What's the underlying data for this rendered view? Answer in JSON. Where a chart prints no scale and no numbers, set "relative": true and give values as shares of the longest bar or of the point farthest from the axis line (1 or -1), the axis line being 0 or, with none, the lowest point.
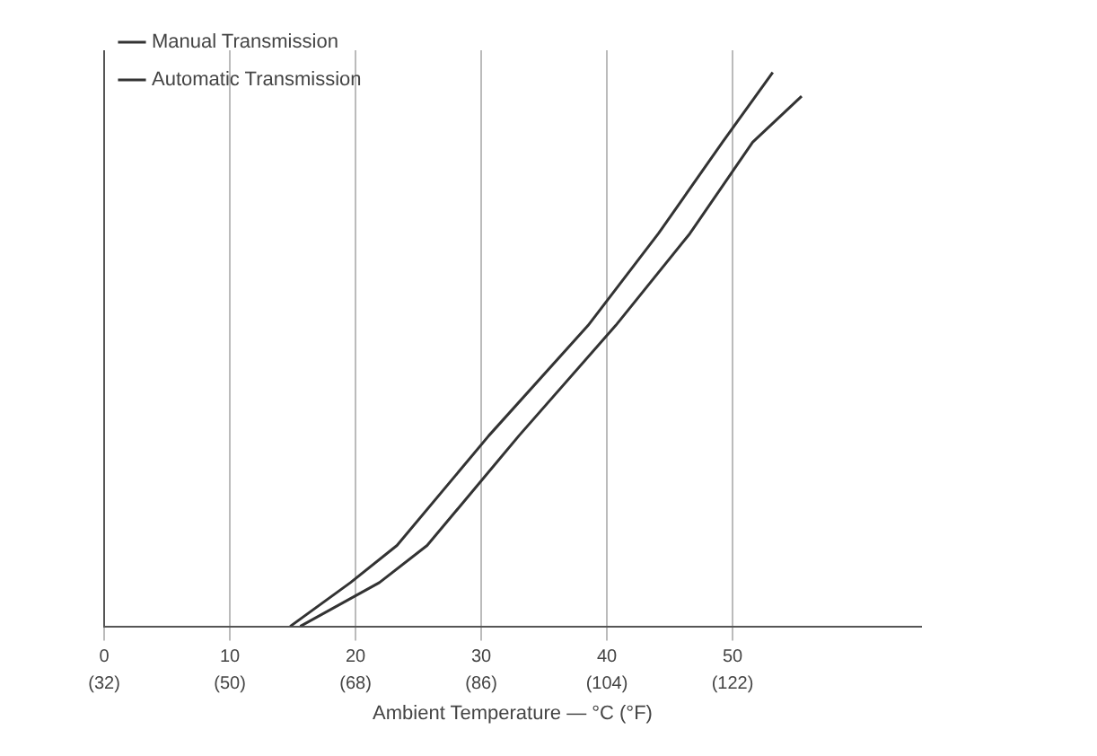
{
  "chart_data": {
    "type": "line",
    "relative": true,
    "xlabel": "Ambient Temperature — °C (°F)",
    "xlim": [
      0,
      65
    ],
    "xticks": [
      0,
      10,
      20,
      30,
      40,
      50
    ],
    "x2lim": [
      32,
      149
    ],
    "x2ticks": [
      {
        "value": 32,
        "label": "(32)"
      },
      {
        "value": 50,
        "label": "(50)"
      },
      {
        "value": 68,
        "label": "(68)"
      },
      {
        "value": 86,
        "label": "(86)"
      },
      {
        "value": 104,
        "label": "(104)"
      },
      {
        "value": 122,
        "label": "(122)"
      }
    ],
    "series": [
      {
        "name": "Manual Transmission",
        "color": "#333333",
        "x": [
          14.8,
          19.6,
          23.3,
          30.6,
          38.5,
          44.1,
          49.2,
          53.2
        ],
        "values": [
          0,
          0.079,
          0.146,
          0.344,
          0.543,
          0.709,
          0.874,
          1
        ]
      },
      {
        "name": "Automatic Transmission",
        "color": "#333333",
        "x": [
          15.6,
          21.9,
          25.7,
          33.0,
          40.7,
          46.6,
          51.6,
          55.5
        ],
        "values": [
          0,
          0.079,
          0.146,
          0.344,
          0.543,
          0.709,
          0.874,
          0.957
        ]
      }
    ],
    "grid": "x",
    "legend": "top left",
    "marker": "none",
    "line_style": "solid"
  }
}
